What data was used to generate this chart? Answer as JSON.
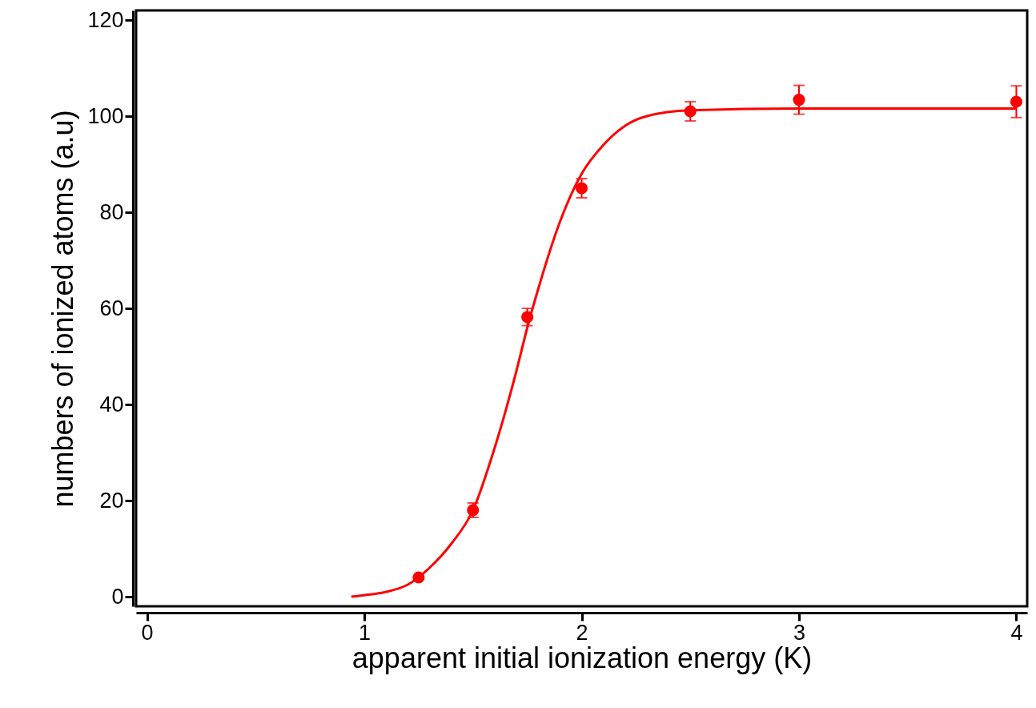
{
  "chart_data": {
    "type": "scatter",
    "xlabel": "apparent initial ionization energy (K)",
    "ylabel": "numbers of ionized atoms (a.u)",
    "xlim": [
      -0.05,
      4.05
    ],
    "ylim": [
      -2,
      122
    ],
    "xticks": [
      0,
      1,
      2,
      3,
      4
    ],
    "yticks": [
      0,
      20,
      40,
      60,
      80,
      100,
      120
    ],
    "series": [
      {
        "marker": "circle",
        "color": "#ff0000",
        "x": [
          1.25,
          1.5,
          1.75,
          2.0,
          2.5,
          3.0,
          4.0
        ],
        "values": [
          4,
          18,
          58.2,
          85,
          101,
          103.4,
          103
        ],
        "errors": [
          null,
          1.5,
          1.8,
          2,
          2,
          3,
          3.3
        ]
      },
      {
        "type": "line",
        "color": "#ff0000",
        "x": [
          0.94,
          1.0,
          1.1,
          1.2,
          1.3,
          1.4,
          1.5,
          1.6,
          1.7,
          1.75,
          1.8,
          1.9,
          2.0,
          2.1,
          2.2,
          2.3,
          2.5,
          3.0,
          4.0
        ],
        "values": [
          0,
          0.3,
          1,
          2.5,
          6,
          11,
          18,
          31,
          47,
          56,
          64,
          78,
          88,
          94,
          98,
          100,
          101.2,
          101.6,
          101.6
        ]
      }
    ]
  }
}
